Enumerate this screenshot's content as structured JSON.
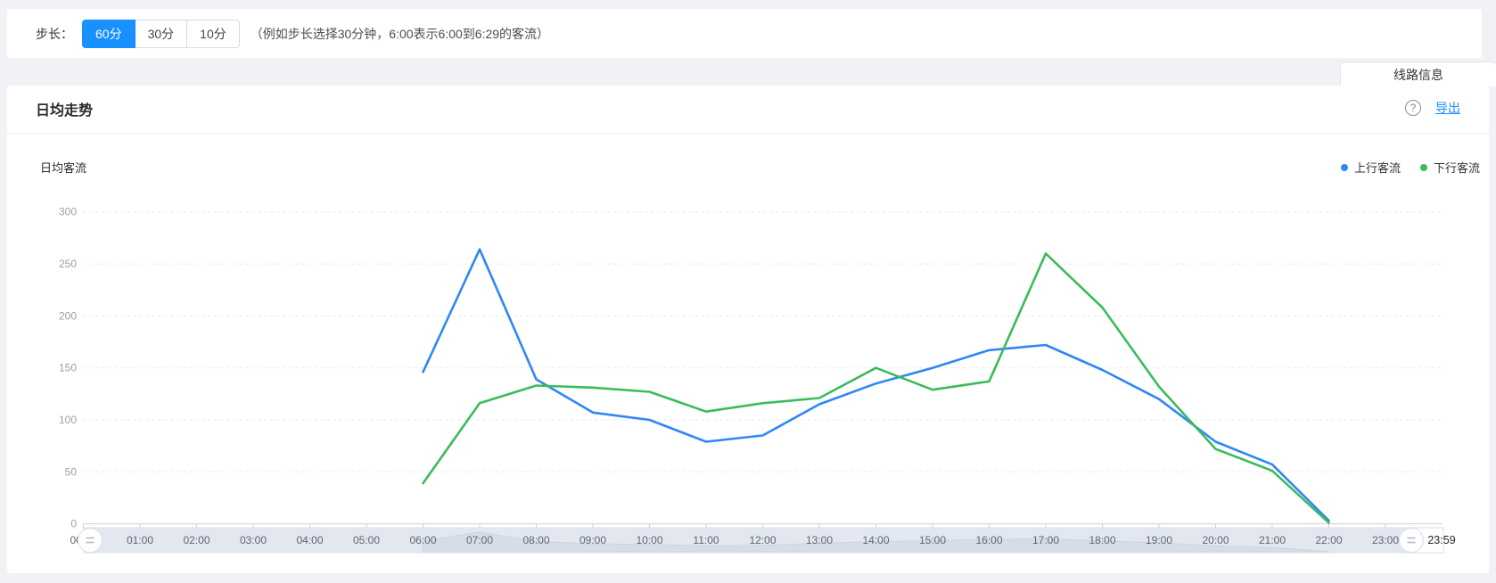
{
  "toolbar": {
    "step_label": "步长：",
    "options": [
      {
        "label": "60分",
        "selected": true
      },
      {
        "label": "30分",
        "selected": false
      },
      {
        "label": "10分",
        "selected": false
      }
    ],
    "hint": "（例如步长选择30分钟，6:00表示6:00到6:29的客流）"
  },
  "tab": {
    "label": "线路信息"
  },
  "card": {
    "title": "日均走势",
    "help_symbol": "?",
    "export_label": "导出",
    "chart_title": "日均客流"
  },
  "colors": {
    "accent_blue": "#1890ff",
    "series_up": "#2f87f6",
    "series_down": "#3cbb5c"
  },
  "chart_data": {
    "type": "line",
    "title": "日均客流",
    "xlabel": "",
    "ylabel": "",
    "ylim": [
      0,
      300
    ],
    "y_ticks": [
      0,
      50,
      100,
      150,
      200,
      250,
      300
    ],
    "grid": "dashed-horizontal",
    "legend_position": "top-right",
    "x_labels": [
      "00:00",
      "01:00",
      "02:00",
      "03:00",
      "04:00",
      "05:00",
      "06:00",
      "07:00",
      "08:00",
      "09:00",
      "10:00",
      "11:00",
      "12:00",
      "13:00",
      "14:00",
      "15:00",
      "16:00",
      "17:00",
      "18:00",
      "19:00",
      "20:00",
      "21:00",
      "22:00",
      "23:00"
    ],
    "axis_end_label": "23:59",
    "series": [
      {
        "name": "上行客流",
        "color": "#2f87f6",
        "x": [
          "06:00",
          "07:00",
          "08:00",
          "09:00",
          "10:00",
          "11:00",
          "12:00",
          "13:00",
          "14:00",
          "15:00",
          "16:00",
          "17:00",
          "18:00",
          "19:00",
          "20:00",
          "21:00",
          "22:00"
        ],
        "values": [
          146,
          264,
          139,
          107,
          100,
          79,
          85,
          115,
          135,
          150,
          167,
          172,
          148,
          120,
          79,
          57,
          3
        ]
      },
      {
        "name": "下行客流",
        "color": "#3cbb5c",
        "x": [
          "06:00",
          "07:00",
          "08:00",
          "09:00",
          "10:00",
          "11:00",
          "12:00",
          "13:00",
          "14:00",
          "15:00",
          "16:00",
          "17:00",
          "18:00",
          "19:00",
          "20:00",
          "21:00",
          "22:00"
        ],
        "values": [
          39,
          116,
          133,
          131,
          127,
          108,
          116,
          121,
          150,
          129,
          137,
          260,
          208,
          132,
          72,
          51,
          1
        ]
      }
    ],
    "datazoom": {
      "visible": true,
      "right_end_label": "23:59"
    }
  }
}
